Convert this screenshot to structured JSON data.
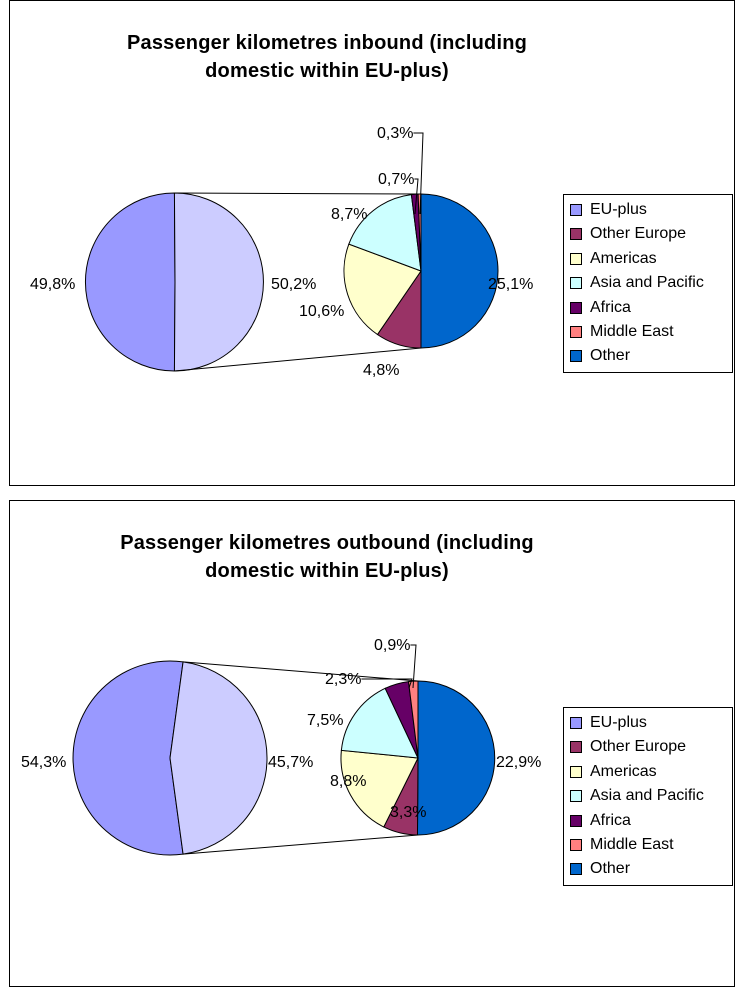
{
  "colors": {
    "eu_plus": "#9999FF",
    "other_europe": "#993366",
    "americas": "#FFFFCC",
    "asia_pacific": "#CCFFFF",
    "africa": "#660066",
    "middle_east": "#FF8080",
    "other": "#0066CC",
    "secondary_other": "#CCCCFF"
  },
  "chart_data": [
    {
      "type": "pie",
      "subtype": "pie-of-pie",
      "title": "Passenger kilometres inbound (including domestic within EU-plus)",
      "title_lines": [
        "Passenger kilometres inbound (including",
        "domestic within EU-plus)"
      ],
      "legend": [
        "EU-plus",
        "Other Europe",
        "Americas",
        "Asia and Pacific",
        "Africa",
        "Middle East",
        "Other"
      ],
      "legend_position": "right",
      "primary": {
        "slices": [
          {
            "name": "EU-plus",
            "value": 49.8,
            "label": "49,8%"
          },
          {
            "name": "Other",
            "value": 50.2,
            "label": "50,2%"
          }
        ]
      },
      "secondary": {
        "slices": [
          {
            "name": "Other",
            "value": 25.1,
            "label": "25,1%"
          },
          {
            "name": "Other Europe",
            "value": 4.8,
            "label": "4,8%"
          },
          {
            "name": "Americas",
            "value": 10.6,
            "label": "10,6%"
          },
          {
            "name": "Asia and Pacific",
            "value": 8.7,
            "label": "8,7%"
          },
          {
            "name": "Africa",
            "value": 0.7,
            "label": "0,7%"
          },
          {
            "name": "Middle East",
            "value": 0.3,
            "label": "0,3%"
          }
        ]
      }
    },
    {
      "type": "pie",
      "subtype": "pie-of-pie",
      "title": "Passenger kilometres outbound (including domestic within EU-plus)",
      "title_lines": [
        "Passenger kilometres outbound (including",
        "domestic within EU-plus)"
      ],
      "legend": [
        "EU-plus",
        "Other Europe",
        "Americas",
        "Asia and Pacific",
        "Africa",
        "Middle East",
        "Other"
      ],
      "legend_position": "right",
      "primary": {
        "slices": [
          {
            "name": "EU-plus",
            "value": 54.3,
            "label": "54,3%"
          },
          {
            "name": "Other",
            "value": 45.7,
            "label": "45,7%"
          }
        ]
      },
      "secondary": {
        "slices": [
          {
            "name": "Other",
            "value": 22.9,
            "label": "22,9%"
          },
          {
            "name": "Other Europe",
            "value": 3.3,
            "label": "3,3%"
          },
          {
            "name": "Americas",
            "value": 8.8,
            "label": "8,8%"
          },
          {
            "name": "Asia and Pacific",
            "value": 7.5,
            "label": "7,5%"
          },
          {
            "name": "Africa",
            "value": 2.3,
            "label": "2,3%"
          },
          {
            "name": "Middle East",
            "value": 0.9,
            "label": "0,9%"
          }
        ]
      }
    }
  ]
}
